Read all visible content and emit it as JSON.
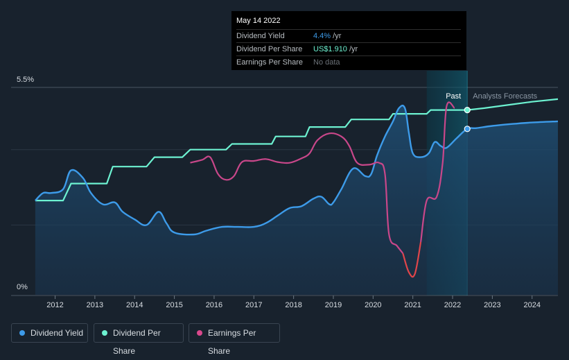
{
  "tooltip": {
    "date": "May 14 2022",
    "rows": [
      {
        "label": "Dividend Yield",
        "value": "4.4%",
        "unit": " /yr",
        "color": "#3d9be9"
      },
      {
        "label": "Dividend Per Share",
        "value": "US$1.910",
        "unit": " /yr",
        "color": "#6df2d1"
      },
      {
        "label": "Earnings Per Share",
        "value": "No data",
        "unit": "",
        "color": "#6b7178"
      }
    ]
  },
  "legend": [
    {
      "label": "Dividend Yield",
      "color": "#3d9be9"
    },
    {
      "label": "Dividend Per Share",
      "color": "#6df2d1"
    },
    {
      "label": "Earnings Per Share",
      "color": "#d9488c"
    }
  ],
  "chart_data": {
    "type": "line",
    "y_tick_labels": [
      "5.5%",
      "0%"
    ],
    "ylim": [
      0,
      5.5
    ],
    "x_tick_labels": [
      "2012",
      "2013",
      "2014",
      "2015",
      "2016",
      "2017",
      "2018",
      "2019",
      "2020",
      "2021",
      "2022",
      "2023",
      "2024"
    ],
    "xlim": [
      2011.45,
      2024.65
    ],
    "past_label": "Past",
    "forecast_label": "Analysts Forecasts",
    "past_region": [
      2021.35,
      2022.37
    ],
    "colors": {
      "yield": "#3d9be9",
      "dps": "#6df2d1",
      "eps": "#c9478a",
      "eps_negative": "#e0454a"
    },
    "series": [
      {
        "name": "Dividend Yield",
        "key": "yield",
        "values": [
          [
            2011.5,
            2.5
          ],
          [
            2011.7,
            2.7
          ],
          [
            2011.9,
            2.7
          ],
          [
            2012.2,
            2.8
          ],
          [
            2012.4,
            3.3
          ],
          [
            2012.7,
            3.1
          ],
          [
            2012.9,
            2.7
          ],
          [
            2013.2,
            2.4
          ],
          [
            2013.5,
            2.45
          ],
          [
            2013.7,
            2.2
          ],
          [
            2014.0,
            2.0
          ],
          [
            2014.3,
            1.85
          ],
          [
            2014.6,
            2.2
          ],
          [
            2014.8,
            1.9
          ],
          [
            2015.0,
            1.65
          ],
          [
            2015.5,
            1.6
          ],
          [
            2015.8,
            1.7
          ],
          [
            2016.2,
            1.8
          ],
          [
            2016.6,
            1.8
          ],
          [
            2017.0,
            1.8
          ],
          [
            2017.3,
            1.9
          ],
          [
            2017.6,
            2.1
          ],
          [
            2017.9,
            2.3
          ],
          [
            2018.2,
            2.35
          ],
          [
            2018.5,
            2.55
          ],
          [
            2018.7,
            2.6
          ],
          [
            2018.9,
            2.4
          ],
          [
            2019.0,
            2.45
          ],
          [
            2019.2,
            2.8
          ],
          [
            2019.5,
            3.35
          ],
          [
            2019.8,
            3.15
          ],
          [
            2019.95,
            3.2
          ],
          [
            2020.1,
            3.7
          ],
          [
            2020.3,
            4.2
          ],
          [
            2020.5,
            4.6
          ],
          [
            2020.65,
            4.95
          ],
          [
            2020.8,
            4.95
          ],
          [
            2020.9,
            4.3
          ],
          [
            2021.0,
            3.75
          ],
          [
            2021.2,
            3.65
          ],
          [
            2021.4,
            3.75
          ],
          [
            2021.55,
            4.05
          ],
          [
            2021.7,
            3.95
          ],
          [
            2021.85,
            3.9
          ],
          [
            2022.1,
            4.15
          ],
          [
            2022.37,
            4.4
          ],
          [
            2022.6,
            4.42
          ],
          [
            2023.0,
            4.48
          ],
          [
            2023.5,
            4.53
          ],
          [
            2024.0,
            4.57
          ],
          [
            2024.65,
            4.6
          ]
        ]
      },
      {
        "name": "Dividend Per Share",
        "key": "dps",
        "values": [
          [
            2011.5,
            2.5
          ],
          [
            2012.2,
            2.5
          ],
          [
            2012.4,
            2.95
          ],
          [
            2013.3,
            2.95
          ],
          [
            2013.45,
            3.4
          ],
          [
            2014.3,
            3.4
          ],
          [
            2014.5,
            3.65
          ],
          [
            2015.2,
            3.65
          ],
          [
            2015.4,
            3.85
          ],
          [
            2016.3,
            3.85
          ],
          [
            2016.45,
            4.0
          ],
          [
            2017.45,
            4.0
          ],
          [
            2017.55,
            4.2
          ],
          [
            2018.3,
            4.2
          ],
          [
            2018.4,
            4.45
          ],
          [
            2019.3,
            4.45
          ],
          [
            2019.45,
            4.65
          ],
          [
            2020.4,
            4.65
          ],
          [
            2020.5,
            4.8
          ],
          [
            2021.35,
            4.8
          ],
          [
            2021.45,
            4.9
          ],
          [
            2022.37,
            4.9
          ],
          [
            2022.8,
            4.95
          ],
          [
            2023.5,
            5.05
          ],
          [
            2024.0,
            5.12
          ],
          [
            2024.65,
            5.19
          ]
        ]
      },
      {
        "name": "Earnings Per Share",
        "key": "eps",
        "values": [
          [
            2015.4,
            3.5
          ],
          [
            2015.7,
            3.58
          ],
          [
            2015.9,
            3.65
          ],
          [
            2016.1,
            3.2
          ],
          [
            2016.3,
            3.05
          ],
          [
            2016.5,
            3.15
          ],
          [
            2016.7,
            3.52
          ],
          [
            2017.0,
            3.55
          ],
          [
            2017.3,
            3.6
          ],
          [
            2017.6,
            3.52
          ],
          [
            2017.9,
            3.5
          ],
          [
            2018.2,
            3.62
          ],
          [
            2018.4,
            3.75
          ],
          [
            2018.6,
            4.1
          ],
          [
            2018.9,
            4.28
          ],
          [
            2019.2,
            4.2
          ],
          [
            2019.4,
            3.95
          ],
          [
            2019.6,
            3.5
          ],
          [
            2019.9,
            3.45
          ],
          [
            2020.15,
            3.5
          ],
          [
            2020.3,
            3.2
          ],
          [
            2020.4,
            1.6
          ],
          [
            2020.6,
            1.3
          ],
          [
            2020.75,
            1.1
          ],
          [
            2020.9,
            0.6
          ],
          [
            2021.05,
            0.55
          ],
          [
            2021.2,
            1.4
          ],
          [
            2021.35,
            2.5
          ],
          [
            2021.6,
            2.6
          ],
          [
            2021.75,
            3.5
          ],
          [
            2021.85,
            5.0
          ],
          [
            2022.05,
            4.95
          ]
        ]
      }
    ],
    "markers": [
      {
        "series": "yield",
        "x": 2022.37,
        "y": 4.4
      },
      {
        "series": "dps",
        "x": 2022.37,
        "y": 4.9
      }
    ]
  }
}
